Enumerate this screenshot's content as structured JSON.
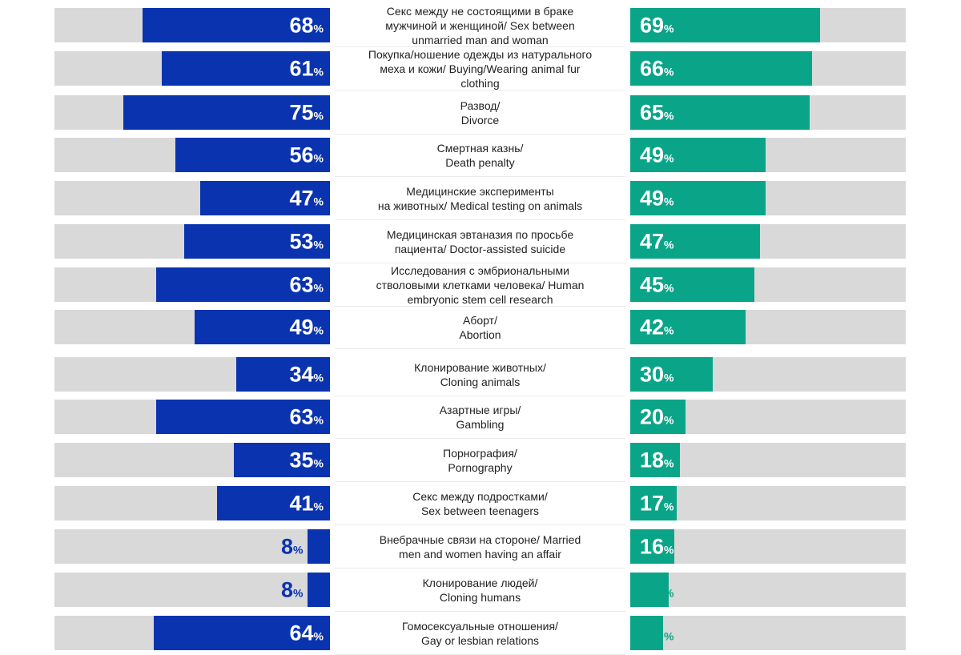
{
  "chart_data": {
    "type": "bar",
    "xlim": [
      0,
      100
    ],
    "colors": {
      "left": "#0a33b0",
      "right": "#0aa588",
      "track": "#d9d9d9"
    },
    "value_suffix": "%",
    "categories": [
      "Секс между не состоящими в браке мужчиной и женщиной/ Sex between unmarried man and woman",
      "Покупка/ношение одежды из натурального меха и кожи/ Buying/Wearing animal fur clothing",
      "Развод/ Divorce",
      "Смертная казнь/ Death penalty",
      "Медицинские эксперименты на животных/ Medical testing on animals",
      "Медицинская эвтаназия по просьбе пациента/ Doctor-assisted suicide",
      "Исследования с эмбриональными стволовыми клетками человека/ Human embryonic stem cell research",
      "Аборт/ Abortion",
      "Клонирование животных/ Cloning animals",
      "Азартные игры/ Gambling",
      "Порнография/ Pornography",
      "Секс между подростками/ Sex between teenagers",
      "Внебрачные связи на стороне/ Married men and women having an affair",
      "Клонирование людей/ Cloning humans",
      "Гомосексуальные отношения/ Gay or lesbian relations"
    ],
    "label_lines": [
      [
        "Секс между не состоящими в браке",
        "мужчиной и женщиной/ Sex between",
        "unmarried man and woman"
      ],
      [
        "Покупка/ношение одежды из натурального",
        "меха и кожи/ Buying/Wearing animal fur",
        "clothing"
      ],
      [
        "Развод/",
        "Divorce"
      ],
      [
        "Смертная казнь/",
        "Death penalty"
      ],
      [
        "Медицинские эксперименты",
        "на животных/ Medical testing on animals"
      ],
      [
        "Медицинская эвтаназия по просьбе",
        "пациента/ Doctor-assisted suicide"
      ],
      [
        "Исследования с эмбриональными",
        "стволовыми клетками человека/ Human",
        "embryonic stem cell research"
      ],
      [
        "Аборт/",
        "Abortion"
      ],
      [
        "Клонирование животных/",
        "Cloning animals"
      ],
      [
        "Азартные игры/",
        "Gambling"
      ],
      [
        "Порнография/",
        "Pornography"
      ],
      [
        "Секс между подростками/",
        "Sex between teenagers"
      ],
      [
        "Внебрачные связи на стороне/ Married",
        "men and women having an affair"
      ],
      [
        "Клонирование людей/",
        "Cloning humans"
      ],
      [
        "Гомосексуальные отношения/",
        "Gay or lesbian relations"
      ]
    ],
    "series": [
      {
        "values": [
          68,
          61,
          75,
          56,
          47,
          53,
          63,
          49,
          34,
          63,
          35,
          41,
          8,
          8,
          64
        ]
      },
      {
        "values": [
          69,
          66,
          65,
          49,
          49,
          47,
          45,
          42,
          30,
          20,
          18,
          17,
          16,
          14,
          12
        ]
      }
    ]
  }
}
